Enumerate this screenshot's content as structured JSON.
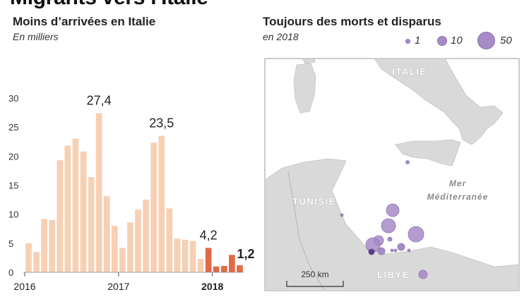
{
  "header": {
    "title": "Migrants vers l'Italie"
  },
  "left_panel": {
    "title": "Moins d’arrivées en Italie",
    "subtitle": "En milliers"
  },
  "right_panel": {
    "title": "Toujours des morts et disparus",
    "subtitle": "en 2018",
    "legend": [
      {
        "label": "1",
        "value": 1
      },
      {
        "label": "10",
        "value": 10
      },
      {
        "label": "50",
        "value": 50
      }
    ]
  },
  "colors": {
    "bar_past": "#f7cfb3",
    "bar_2018": "#e06a45",
    "land": "#d9d9d9",
    "sea": "#ffffff",
    "bubble": "#a68cc7",
    "bubble_stroke": "#8d70b4",
    "bubble_dark": "#5a3f8c"
  },
  "map": {
    "labels": [
      "ITALIE",
      "TUNISIE",
      "Mer",
      "Méditerranée",
      "LIBYE"
    ],
    "scale_label": "250 km"
  },
  "chart_data": {
    "type": "bar",
    "title": "Moins d’arrivées en Italie",
    "subtitle": "En milliers",
    "xlabel": "",
    "ylabel": "",
    "ylim": [
      0,
      30
    ],
    "yticks": [
      0,
      5,
      10,
      15,
      20,
      25,
      30
    ],
    "x_tick_labels": [
      {
        "label": "2016",
        "index": 0
      },
      {
        "label": "2017",
        "index": 12
      },
      {
        "label": "2018",
        "index": 24
      }
    ],
    "grid": false,
    "series": [
      {
        "values": [
          5.0,
          3.5,
          9.2,
          9.0,
          19.3,
          21.8,
          23.0,
          20.8,
          16.4,
          27.4,
          13.1,
          8.0,
          4.2,
          8.6,
          10.8,
          12.5,
          22.3,
          23.5,
          11.0,
          5.8,
          5.6,
          5.4,
          2.3,
          4.2,
          1.0,
          1.1,
          3.0,
          1.2
        ]
      }
    ],
    "annotations": [
      {
        "index": 9,
        "text": "27,4"
      },
      {
        "index": 17,
        "text": "23,5"
      },
      {
        "index": 23,
        "text": "4,2"
      },
      {
        "index": 27,
        "text": "1,2"
      }
    ]
  }
}
